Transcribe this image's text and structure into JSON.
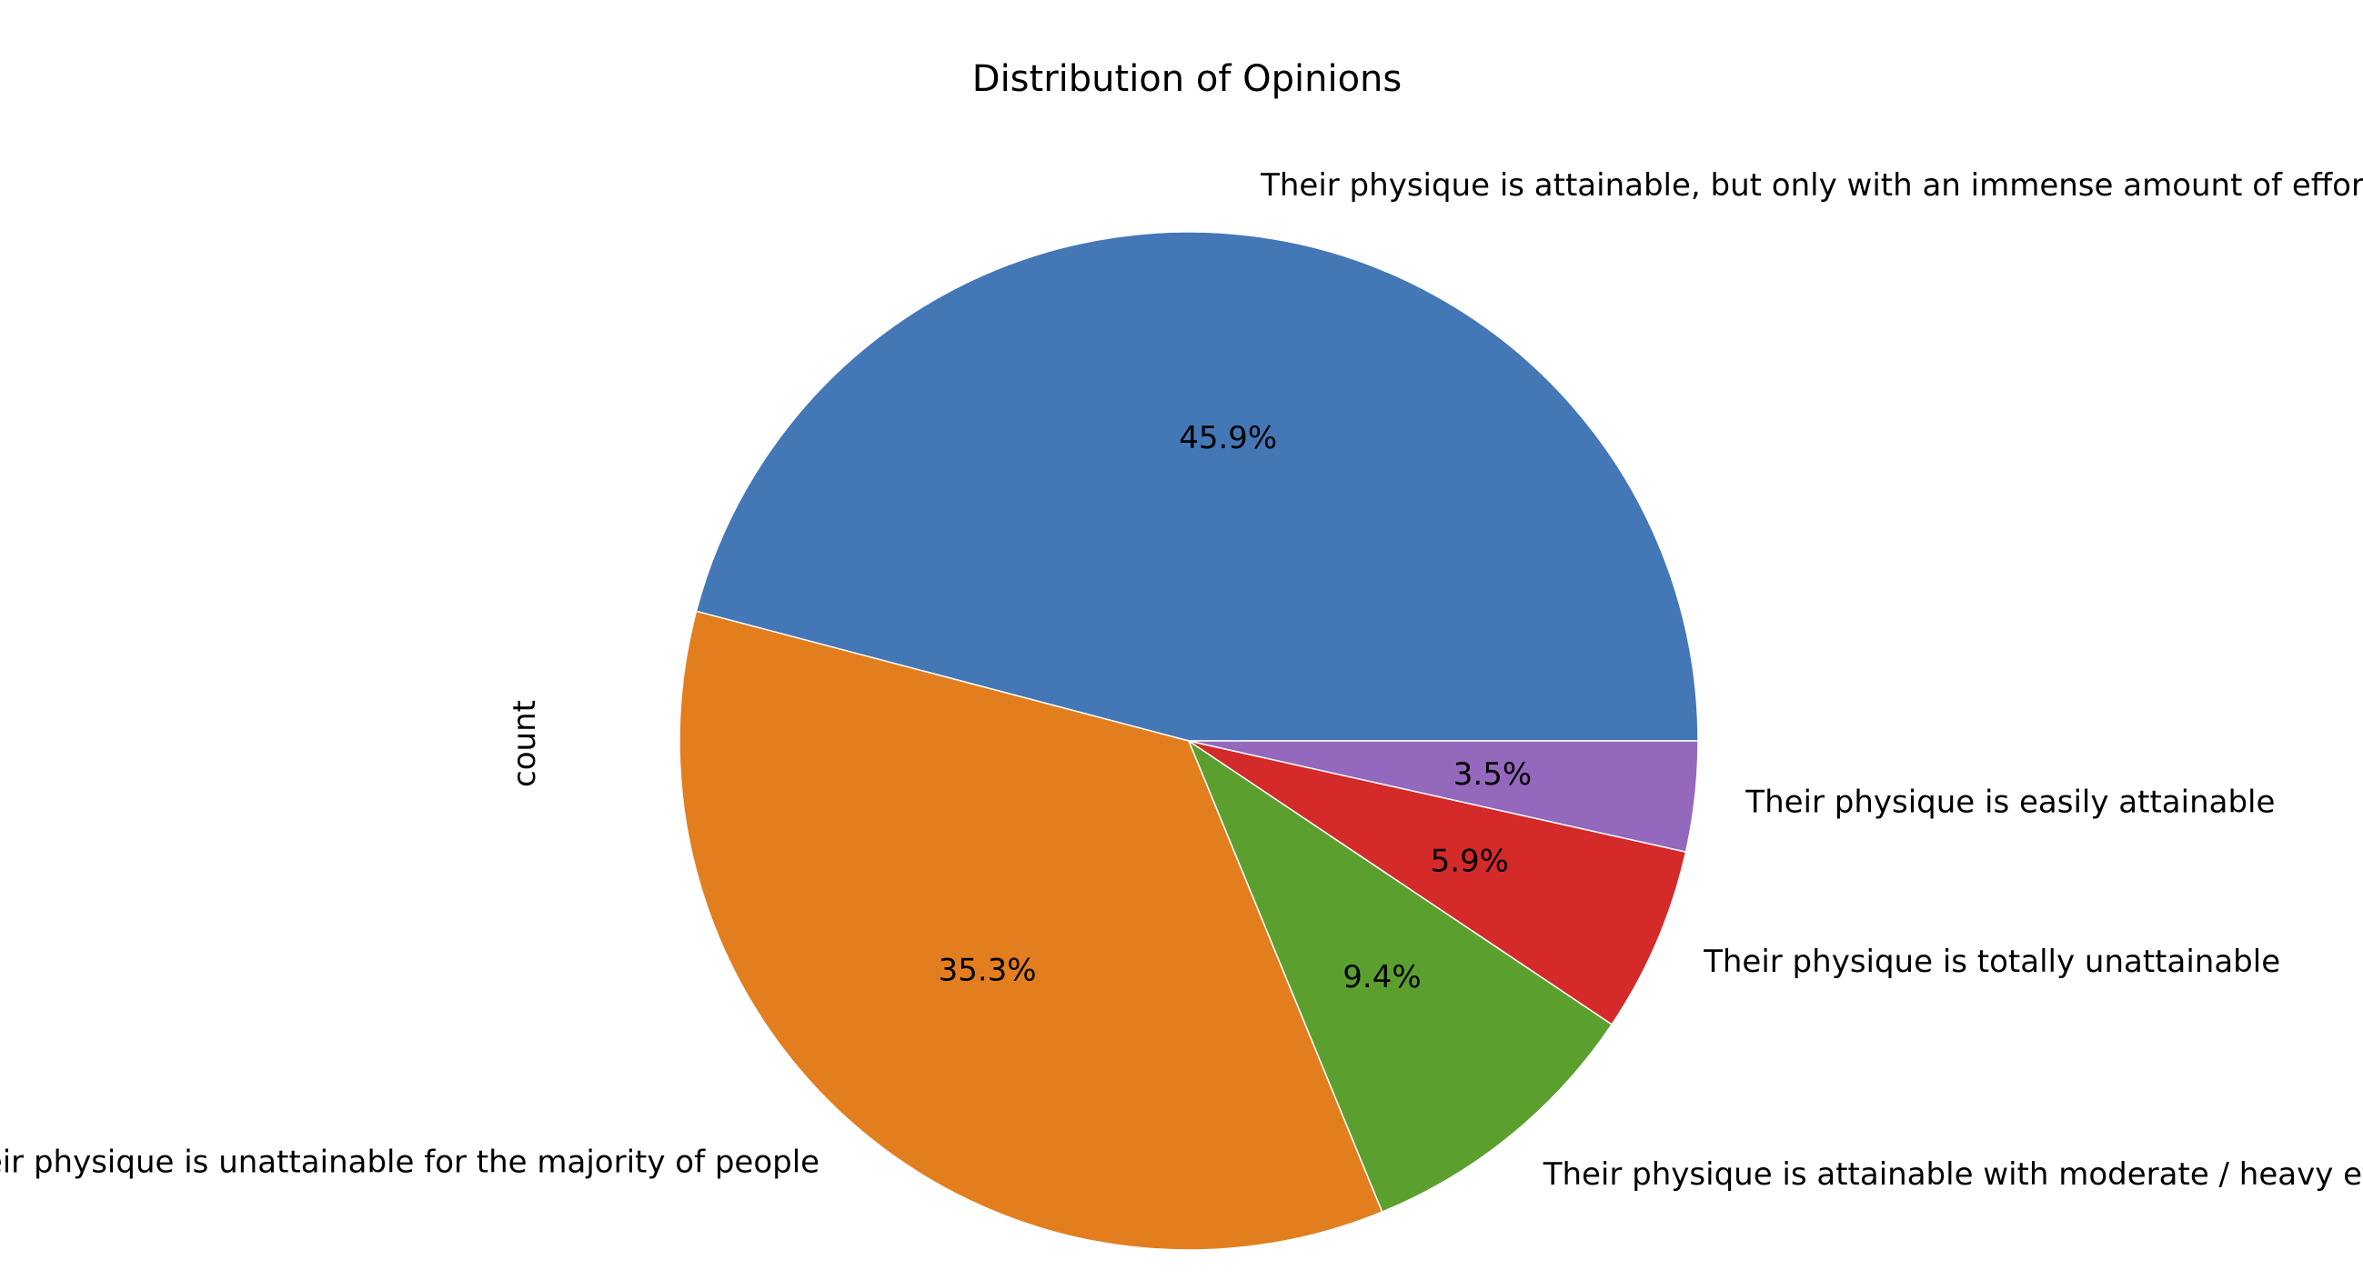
{
  "chart_data": {
    "type": "pie",
    "title": "Distribution of Opinions",
    "ylabel": "count",
    "start_angle_deg": 0,
    "direction": "counterclockwise",
    "slices": [
      {
        "label": "Their physique is attainable, but only with an immense amount of effort",
        "value": 45.9,
        "pct_label": "45.9%",
        "color": "#4477b6"
      },
      {
        "label": "Their physique is unattainable for the majority of people",
        "value": 35.3,
        "pct_label": "35.3%",
        "color": "#e37e1f"
      },
      {
        "label": "Their physique is attainable with moderate / heavy effort",
        "value": 9.4,
        "pct_label": "9.4%",
        "color": "#5ba02f"
      },
      {
        "label": "Their physique is totally unattainable",
        "value": 5.9,
        "pct_label": "5.9%",
        "color": "#d42a2a"
      },
      {
        "label": "Their physique is easily attainable",
        "value": 3.5,
        "pct_label": "3.5%",
        "color": "#9368bd"
      }
    ]
  }
}
